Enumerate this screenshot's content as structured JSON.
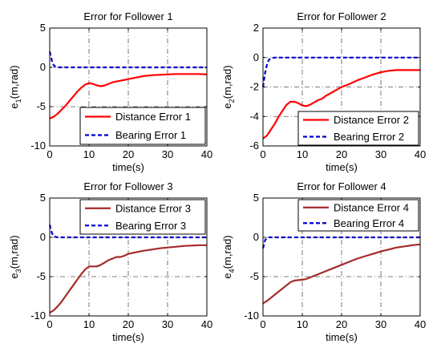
{
  "figure": {
    "panels": [
      {
        "title": "Error for Follower 1",
        "ylabel_main": "e",
        "ylabel_sub": "1",
        "ylabel_rest": "(m,rad)",
        "xlabel": "time(s)"
      },
      {
        "title": "Error for Follower 2",
        "ylabel_main": "e",
        "ylabel_sub": "2",
        "ylabel_rest": "(m,rad)",
        "xlabel": "time(s)"
      },
      {
        "title": "Error for Follower 3",
        "ylabel_main": "e",
        "ylabel_sub": "3",
        "ylabel_rest": "(m,rad)",
        "xlabel": "time(s)"
      },
      {
        "title": "Error for Follower 4",
        "ylabel_main": "e",
        "ylabel_sub": "4",
        "ylabel_rest": "(m,rad)",
        "xlabel": "time(s)"
      }
    ]
  },
  "chart_data": [
    {
      "type": "line",
      "title": "Error for Follower 1",
      "xlabel": "time(s)",
      "ylabel": "e1(m,rad)",
      "xlim": [
        0,
        40
      ],
      "ylim": [
        -10,
        5
      ],
      "xticks": [
        "0",
        "10",
        "20",
        "30",
        "40"
      ],
      "yticks": [
        "-10",
        "-5",
        "0",
        "5"
      ],
      "legend_position": "bottom-right",
      "series": [
        {
          "name": "Distance Error 1",
          "color": "#ff0000",
          "style": "solid",
          "x": [
            0,
            1,
            2,
            3,
            4,
            5,
            6,
            7,
            8,
            9,
            10,
            11,
            12,
            13,
            14,
            15,
            16,
            17,
            18,
            19,
            20,
            22,
            24,
            26,
            28,
            30,
            32,
            34,
            36,
            38,
            40
          ],
          "y": [
            -6.5,
            -6.3,
            -5.9,
            -5.4,
            -4.9,
            -4.3,
            -3.7,
            -3.1,
            -2.6,
            -2.2,
            -2.0,
            -2.1,
            -2.3,
            -2.4,
            -2.3,
            -2.1,
            -1.9,
            -1.8,
            -1.7,
            -1.6,
            -1.5,
            -1.3,
            -1.1,
            -1.0,
            -0.95,
            -0.9,
            -0.85,
            -0.85,
            -0.85,
            -0.85,
            -0.9
          ]
        },
        {
          "name": "Bearing Error 1",
          "color": "#0000cc",
          "style": "dashed",
          "x": [
            0,
            0.3,
            0.6,
            1,
            1.5,
            2,
            3,
            5,
            10,
            20,
            30,
            40
          ],
          "y": [
            2.0,
            1.4,
            0.8,
            0.3,
            0.05,
            0,
            0,
            0,
            0,
            0,
            0,
            0
          ]
        }
      ]
    },
    {
      "type": "line",
      "title": "Error for Follower 2",
      "xlabel": "time(s)",
      "ylabel": "e2(m,rad)",
      "xlim": [
        0,
        40
      ],
      "ylim": [
        -6,
        2
      ],
      "xticks": [
        "0",
        "10",
        "20",
        "30",
        "40"
      ],
      "yticks": [
        "-6",
        "-4",
        "-2",
        "0",
        "2"
      ],
      "legend_position": "bottom-right",
      "series": [
        {
          "name": "Distance Error 2",
          "color": "#ff0000",
          "style": "solid",
          "x": [
            0,
            1,
            2,
            3,
            4,
            5,
            6,
            7,
            8,
            9,
            10,
            11,
            12,
            13,
            14,
            15,
            16,
            17,
            18,
            19,
            20,
            22,
            24,
            26,
            28,
            30,
            32,
            34,
            36,
            38,
            40
          ],
          "y": [
            -5.5,
            -5.3,
            -4.9,
            -4.5,
            -4.0,
            -3.6,
            -3.2,
            -3.0,
            -3.0,
            -3.1,
            -3.25,
            -3.3,
            -3.2,
            -3.05,
            -2.9,
            -2.8,
            -2.6,
            -2.45,
            -2.3,
            -2.15,
            -2.0,
            -1.8,
            -1.55,
            -1.35,
            -1.15,
            -1.0,
            -0.9,
            -0.85,
            -0.85,
            -0.85,
            -0.85
          ]
        },
        {
          "name": "Bearing Error 2",
          "color": "#0000cc",
          "style": "dashed",
          "x": [
            0,
            0.5,
            1,
            1.5,
            2,
            3,
            5,
            10,
            20,
            30,
            40
          ],
          "y": [
            -2.0,
            -1.1,
            -0.5,
            -0.15,
            -0.05,
            0,
            0,
            0,
            0,
            0,
            0
          ]
        }
      ]
    },
    {
      "type": "line",
      "title": "Error for Follower 3",
      "xlabel": "time(s)",
      "ylabel": "e3(m,rad)",
      "xlim": [
        0,
        40
      ],
      "ylim": [
        -10,
        5
      ],
      "xticks": [
        "0",
        "10",
        "20",
        "30",
        "40"
      ],
      "yticks": [
        "-10",
        "-5",
        "0",
        "5"
      ],
      "legend_position": "top-right",
      "series": [
        {
          "name": "Distance Error 3",
          "color": "#a52a2a",
          "style": "solid",
          "x": [
            0,
            1,
            2,
            3,
            4,
            5,
            6,
            7,
            8,
            9,
            10,
            11,
            12,
            13,
            14,
            15,
            16,
            17,
            18,
            19,
            20,
            22,
            24,
            26,
            28,
            30,
            32,
            34,
            36,
            38,
            40
          ],
          "y": [
            -9.6,
            -9.3,
            -8.8,
            -8.2,
            -7.5,
            -6.8,
            -6.1,
            -5.4,
            -4.7,
            -4.1,
            -3.7,
            -3.7,
            -3.7,
            -3.5,
            -3.2,
            -2.9,
            -2.7,
            -2.5,
            -2.5,
            -2.35,
            -2.1,
            -1.9,
            -1.7,
            -1.55,
            -1.4,
            -1.3,
            -1.2,
            -1.1,
            -1.05,
            -1.0,
            -1.0
          ]
        },
        {
          "name": "Bearing Error 3",
          "color": "#0000cc",
          "style": "dashed",
          "x": [
            0,
            0.3,
            0.6,
            1,
            1.5,
            2,
            3,
            5,
            10,
            20,
            30,
            40
          ],
          "y": [
            1.6,
            1.0,
            0.5,
            0.2,
            0.05,
            0,
            0,
            0,
            0,
            0,
            0,
            0
          ]
        }
      ]
    },
    {
      "type": "line",
      "title": "Error for Follower 4",
      "xlabel": "time(s)",
      "ylabel": "e4(m,rad)",
      "xlim": [
        0,
        40
      ],
      "ylim": [
        -10,
        5
      ],
      "xticks": [
        "0",
        "10",
        "20",
        "30",
        "40"
      ],
      "yticks": [
        "-10",
        "-5",
        "0",
        "5"
      ],
      "legend_position": "top-right",
      "series": [
        {
          "name": "Distance Error 4",
          "color": "#a52a2a",
          "style": "solid",
          "x": [
            0,
            1,
            2,
            3,
            4,
            5,
            6,
            7,
            8,
            9,
            10,
            11,
            12,
            13,
            14,
            15,
            16,
            17,
            18,
            19,
            20,
            22,
            24,
            26,
            28,
            30,
            32,
            34,
            36,
            38,
            40
          ],
          "y": [
            -8.4,
            -8.1,
            -7.7,
            -7.3,
            -6.9,
            -6.5,
            -6.1,
            -5.7,
            -5.5,
            -5.45,
            -5.4,
            -5.3,
            -5.1,
            -4.9,
            -4.7,
            -4.5,
            -4.3,
            -4.1,
            -3.9,
            -3.7,
            -3.5,
            -3.1,
            -2.7,
            -2.4,
            -2.1,
            -1.8,
            -1.55,
            -1.3,
            -1.15,
            -1.0,
            -0.9
          ]
        },
        {
          "name": "Bearing Error 4",
          "color": "#0000cc",
          "style": "dashed",
          "x": [
            0,
            0.3,
            0.6,
            1,
            1.5,
            2,
            3,
            5,
            10,
            20,
            30,
            40
          ],
          "y": [
            -1.4,
            -0.8,
            -0.3,
            -0.1,
            0,
            0,
            0,
            0,
            0,
            0,
            0,
            0
          ]
        }
      ]
    }
  ]
}
